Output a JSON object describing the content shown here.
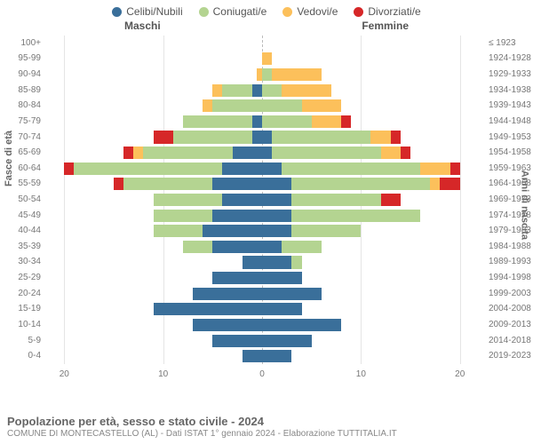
{
  "legend": [
    {
      "label": "Celibi/Nubili",
      "color": "#3a6f9a"
    },
    {
      "label": "Coniugati/e",
      "color": "#b4d491"
    },
    {
      "label": "Vedovi/e",
      "color": "#fcc05b"
    },
    {
      "label": "Divorziati/e",
      "color": "#d62728"
    }
  ],
  "gender_left": "Maschi",
  "gender_right": "Femmine",
  "axis_left_title": "Fasce di età",
  "axis_right_title": "Anni di nascita",
  "x_ticks": [
    20,
    10,
    0,
    10,
    20
  ],
  "x_max": 22,
  "title": "Popolazione per età, sesso e stato civile - 2024",
  "subtitle": "COMUNE DI MONTECASTELLO (AL) - Dati ISTAT 1° gennaio 2024 - Elaborazione TUTTITALIA.IT",
  "colors": {
    "single": "#3a6f9a",
    "married": "#b4d491",
    "widowed": "#fcc05b",
    "divorced": "#d62728",
    "grid": "#e5e5e5",
    "center_line": "#bbbbbb",
    "bg": "#ffffff"
  },
  "bar_height_ratio": 0.8,
  "rows": [
    {
      "age": "100+",
      "year": "≤ 1923",
      "m": [
        0,
        0,
        0,
        0
      ],
      "f": [
        0,
        0,
        0,
        0
      ]
    },
    {
      "age": "95-99",
      "year": "1924-1928",
      "m": [
        0,
        0,
        0,
        0
      ],
      "f": [
        0,
        0,
        1,
        0
      ]
    },
    {
      "age": "90-94",
      "year": "1929-1933",
      "m": [
        0,
        0,
        0.5,
        0
      ],
      "f": [
        0,
        1,
        5,
        0
      ]
    },
    {
      "age": "85-89",
      "year": "1934-1938",
      "m": [
        1,
        3,
        1,
        0
      ],
      "f": [
        0,
        2,
        5,
        0
      ]
    },
    {
      "age": "80-84",
      "year": "1939-1943",
      "m": [
        0,
        5,
        1,
        0
      ],
      "f": [
        0,
        4,
        4,
        0
      ]
    },
    {
      "age": "75-79",
      "year": "1944-1948",
      "m": [
        1,
        7,
        0,
        0
      ],
      "f": [
        0,
        5,
        3,
        1
      ]
    },
    {
      "age": "70-74",
      "year": "1949-1953",
      "m": [
        1,
        8,
        0,
        2
      ],
      "f": [
        1,
        10,
        2,
        1
      ]
    },
    {
      "age": "65-69",
      "year": "1954-1958",
      "m": [
        3,
        9,
        1,
        1
      ],
      "f": [
        1,
        11,
        2,
        1
      ]
    },
    {
      "age": "60-64",
      "year": "1959-1963",
      "m": [
        4,
        15,
        0,
        1
      ],
      "f": [
        2,
        14,
        3,
        1
      ]
    },
    {
      "age": "55-59",
      "year": "1964-1968",
      "m": [
        5,
        9,
        0,
        1
      ],
      "f": [
        3,
        14,
        1,
        2
      ]
    },
    {
      "age": "50-54",
      "year": "1969-1973",
      "m": [
        4,
        7,
        0,
        0
      ],
      "f": [
        3,
        9,
        0,
        2
      ]
    },
    {
      "age": "45-49",
      "year": "1974-1978",
      "m": [
        5,
        6,
        0,
        0
      ],
      "f": [
        3,
        13,
        0,
        0
      ]
    },
    {
      "age": "40-44",
      "year": "1979-1983",
      "m": [
        6,
        5,
        0,
        0
      ],
      "f": [
        3,
        7,
        0,
        0
      ]
    },
    {
      "age": "35-39",
      "year": "1984-1988",
      "m": [
        5,
        3,
        0,
        0
      ],
      "f": [
        2,
        4,
        0,
        0
      ]
    },
    {
      "age": "30-34",
      "year": "1989-1993",
      "m": [
        2,
        0,
        0,
        0
      ],
      "f": [
        3,
        1,
        0,
        0
      ]
    },
    {
      "age": "25-29",
      "year": "1994-1998",
      "m": [
        5,
        0,
        0,
        0
      ],
      "f": [
        4,
        0,
        0,
        0
      ]
    },
    {
      "age": "20-24",
      "year": "1999-2003",
      "m": [
        7,
        0,
        0,
        0
      ],
      "f": [
        6,
        0,
        0,
        0
      ]
    },
    {
      "age": "15-19",
      "year": "2004-2008",
      "m": [
        11,
        0,
        0,
        0
      ],
      "f": [
        4,
        0,
        0,
        0
      ]
    },
    {
      "age": "10-14",
      "year": "2009-2013",
      "m": [
        7,
        0,
        0,
        0
      ],
      "f": [
        8,
        0,
        0,
        0
      ]
    },
    {
      "age": "5-9",
      "year": "2014-2018",
      "m": [
        5,
        0,
        0,
        0
      ],
      "f": [
        5,
        0,
        0,
        0
      ]
    },
    {
      "age": "0-4",
      "year": "2019-2023",
      "m": [
        2,
        0,
        0,
        0
      ],
      "f": [
        3,
        0,
        0,
        0
      ]
    }
  ]
}
